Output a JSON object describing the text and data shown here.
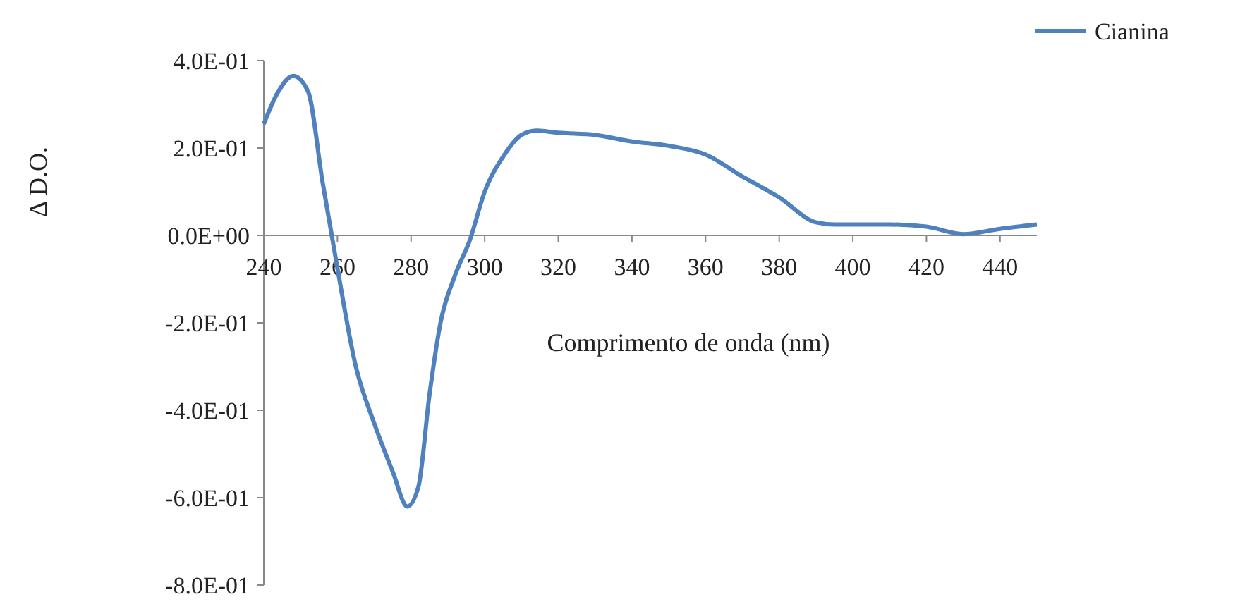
{
  "chart_data": {
    "type": "line",
    "xlabel": "Comprimento de onda (nm)",
    "ylabel": "Δ D.O.",
    "x": [
      240,
      244,
      248,
      252,
      256,
      260,
      265,
      270,
      275,
      279,
      282,
      285,
      288,
      292,
      296,
      300,
      305,
      310,
      314,
      320,
      330,
      340,
      350,
      360,
      370,
      380,
      390,
      395,
      410,
      420,
      430,
      440,
      450
    ],
    "series": [
      {
        "name": "Cianina",
        "color": "#4f81bd",
        "values": [
          0.255,
          0.33,
          0.365,
          0.33,
          0.12,
          -0.075,
          -0.3,
          -0.43,
          -0.54,
          -0.62,
          -0.575,
          -0.365,
          -0.2,
          -0.09,
          -0.01,
          0.1,
          0.18,
          0.23,
          0.24,
          0.235,
          0.23,
          0.215,
          0.205,
          0.185,
          0.135,
          0.087,
          0.03,
          0.025,
          0.025,
          0.02,
          0.003,
          0.015,
          0.025
        ]
      }
    ],
    "xlim": [
      240,
      450
    ],
    "xticks": [
      240,
      260,
      280,
      300,
      320,
      340,
      360,
      380,
      400,
      420,
      440
    ],
    "ylim": [
      -0.8,
      0.4
    ],
    "yticks": [
      {
        "value": 0.4,
        "label": "4.0E-01"
      },
      {
        "value": 0.2,
        "label": "2.0E-01"
      },
      {
        "value": 0,
        "label": "0.0E+00"
      },
      {
        "value": -0.2,
        "label": "-2.0E-01"
      },
      {
        "value": -0.4,
        "label": "-4.0E-01"
      },
      {
        "value": -0.6,
        "label": "-6.0E-01"
      },
      {
        "value": -0.8,
        "label": "-8.0E-01"
      }
    ],
    "legend": "top right",
    "grid": false,
    "marker": "none",
    "line_style": "solid"
  }
}
